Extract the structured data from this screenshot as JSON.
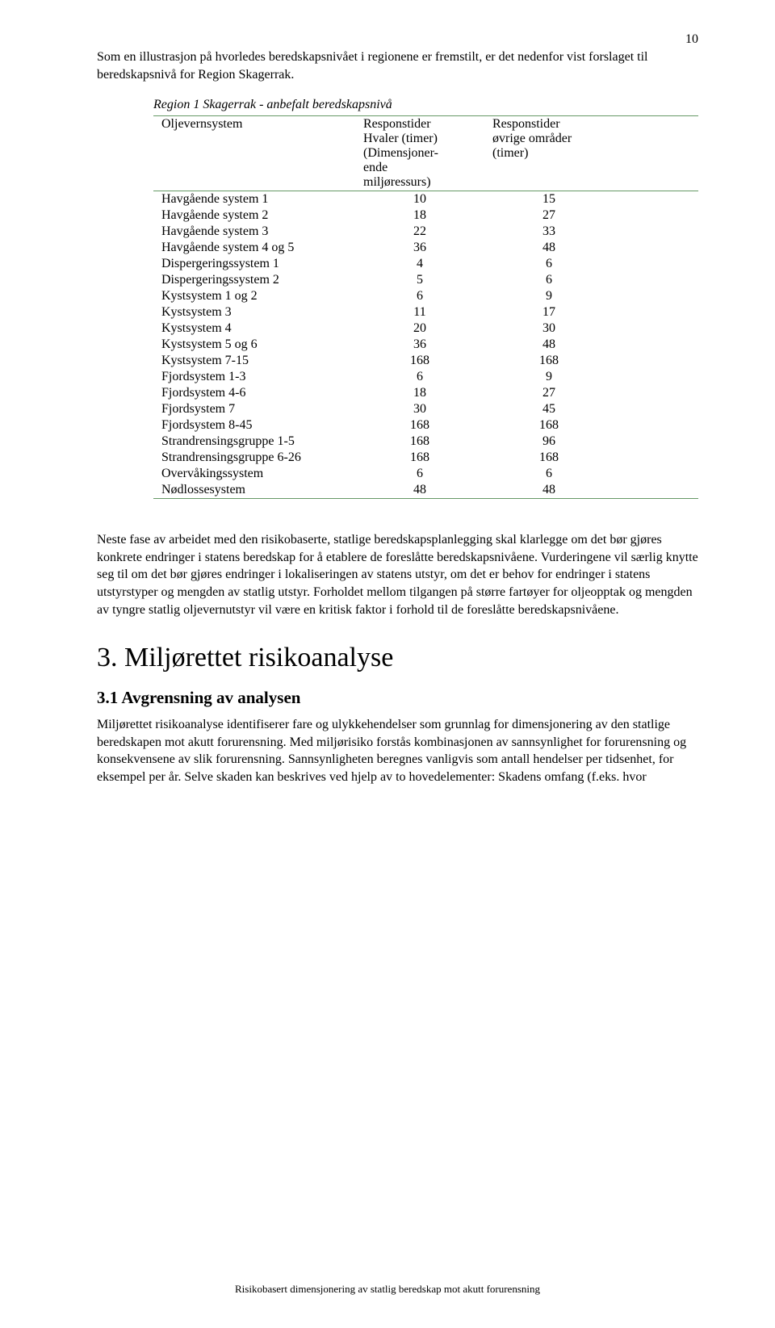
{
  "page_number": "10",
  "intro_para": "Som en illustrasjon på hvorledes beredskapsnivået i regionene er fremstilt, er det nedenfor vist forslaget til beredskapsnivå for Region Skagerrak.",
  "table": {
    "title": "Region 1 Skagerrak - anbefalt beredskapsnivå",
    "header": {
      "col1": "Oljevernsystem",
      "col2": "Responstider Hvaler (timer) (Dimensjoner-ende miljøressurs)",
      "col2_lines": [
        "Responstider",
        "Hvaler (timer)",
        "(Dimensjoner-",
        "ende",
        "miljøressurs)"
      ],
      "col3": "Responstider øvrige områder (timer)",
      "col3_lines": [
        "Responstider",
        "øvrige områder",
        "(timer)"
      ]
    },
    "rows": [
      {
        "label": "Havgående system 1",
        "v1": "10",
        "v2": "15"
      },
      {
        "label": "Havgående system 2",
        "v1": "18",
        "v2": "27"
      },
      {
        "label": "Havgående system 3",
        "v1": "22",
        "v2": "33"
      },
      {
        "label": "Havgående system 4 og 5",
        "v1": "36",
        "v2": "48"
      },
      {
        "label": "Dispergeringssystem 1",
        "v1": "4",
        "v2": "6"
      },
      {
        "label": "Dispergeringssystem 2",
        "v1": "5",
        "v2": "6"
      },
      {
        "label": "Kystsystem 1 og 2",
        "v1": "6",
        "v2": "9"
      },
      {
        "label": "Kystsystem 3",
        "v1": "11",
        "v2": "17"
      },
      {
        "label": "Kystsystem 4",
        "v1": "20",
        "v2": "30"
      },
      {
        "label": "Kystsystem 5 og 6",
        "v1": "36",
        "v2": "48"
      },
      {
        "label": "Kystsystem 7-15",
        "v1": "168",
        "v2": "168"
      },
      {
        "label": "Fjordsystem 1-3",
        "v1": "6",
        "v2": "9"
      },
      {
        "label": "Fjordsystem 4-6",
        "v1": "18",
        "v2": "27"
      },
      {
        "label": "Fjordsystem 7",
        "v1": "30",
        "v2": "45"
      },
      {
        "label": "Fjordsystem 8-45",
        "v1": "168",
        "v2": "168"
      },
      {
        "label": "Strandrensingsgruppe 1-5",
        "v1": "168",
        "v2": "96"
      },
      {
        "label": "Strandrensingsgruppe 6-26",
        "v1": "168",
        "v2": "168"
      },
      {
        "label": "Overvåkingssystem",
        "v1": "6",
        "v2": "6"
      },
      {
        "label": "Nødlossesystem",
        "v1": "48",
        "v2": "48"
      }
    ],
    "border_color": "#669966"
  },
  "para_after_table": "Neste fase av arbeidet med den risikobaserte, statlige beredskapsplanlegging skal klarlegge om det bør gjøres konkrete endringer i statens beredskap for å etablere de foreslåtte beredskapsnivåene. Vurderingene vil særlig knytte seg til om det bør gjøres endringer i lokaliseringen av statens utstyr, om det er behov for endringer i statens utstyrstyper og mengden av statlig utstyr. Forholdet mellom tilgangen på større fartøyer for oljeopptak og mengden av tyngre statlig oljevernutstyr vil være en kritisk faktor i forhold til de foreslåtte beredskapsnivåene.",
  "section3_title": "3. Miljørettet risikoanalyse",
  "section3_1_title": "3.1 Avgrensning av analysen",
  "section3_1_para": "Miljørettet risikoanalyse identifiserer fare og ulykkehendelser som grunnlag for dimensjonering av den statlige beredskapen mot akutt forurensning. Med miljørisiko forstås kombinasjonen av sannsynlighet for forurensning og konsekvensene av slik forurensning. Sannsynligheten beregnes vanligvis som antall hendelser per tidsenhet, for eksempel per år. Selve skaden kan beskrives ved hjelp av to hovedelementer: Skadens omfang (f.eks. hvor",
  "footer_text": "Risikobasert dimensjonering av statlig beredskap mot akutt forurensning"
}
